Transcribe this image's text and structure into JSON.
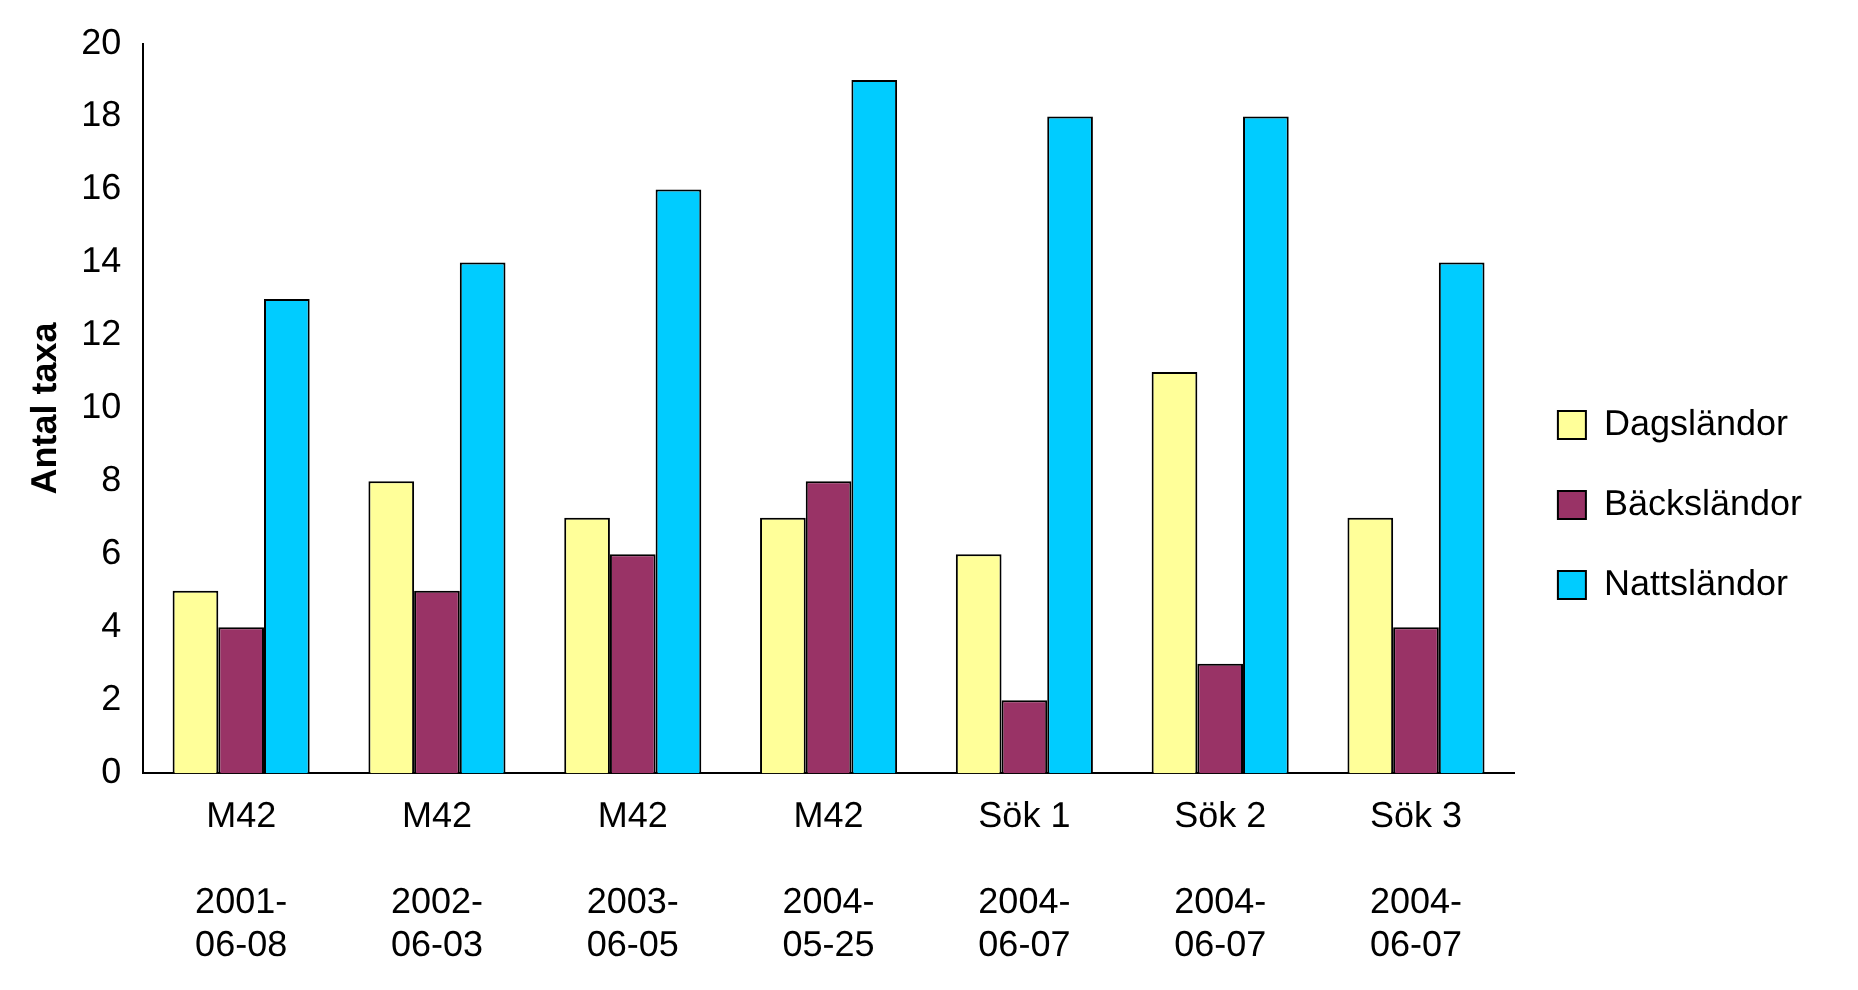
{
  "chart_data": {
    "type": "bar",
    "ylabel": "Antal taxa",
    "categories": [
      "M42 2001-06-08",
      "M42 2002-06-03",
      "M42 2003-06-05",
      "M42 2004-05-25",
      "Sök 1 2004-06-07",
      "Sök 2 2004-06-07",
      "Sök 3 2004-06-07"
    ],
    "series": [
      {
        "name": "Dagsländor",
        "color": "#ffff99",
        "values": [
          5,
          8,
          7,
          7,
          6,
          11,
          7
        ]
      },
      {
        "name": "Bäcksländor",
        "color": "#993366",
        "values": [
          4,
          5,
          6,
          8,
          2,
          3,
          4
        ]
      },
      {
        "name": "Nattsländor",
        "color": "#00ccff",
        "values": [
          13,
          14,
          16,
          19,
          18,
          18,
          14
        ]
      }
    ],
    "ylim": [
      0,
      20
    ],
    "yticks": [
      0,
      2,
      4,
      6,
      8,
      10,
      12,
      14,
      16,
      18,
      20
    ],
    "grid": false,
    "legend": "right"
  }
}
